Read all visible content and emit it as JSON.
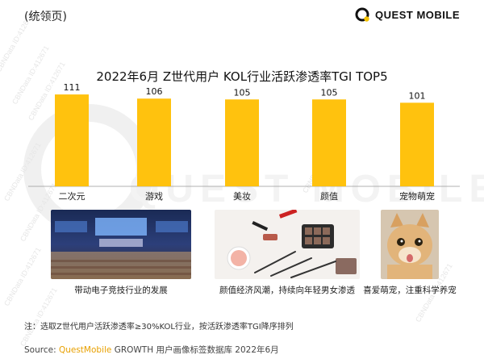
{
  "header": {
    "label": "(统领页)"
  },
  "logo": {
    "name": "QUEST MOBILE",
    "icon": "q-logo-icon",
    "accent": "#F5C200"
  },
  "chart_data": {
    "type": "bar",
    "title": "2022年6月 Z世代用户 KOL行业活跃渗透率TGI TOP5",
    "categories": [
      "二次元",
      "游戏",
      "美妆",
      "颜值",
      "宠物萌宠"
    ],
    "values": [
      111,
      106,
      105,
      105,
      101
    ],
    "ylim": [
      0,
      115
    ],
    "bar_color": "#FFC20E",
    "grid": false,
    "legend": "none"
  },
  "photos": [
    {
      "caption": "带动电子竞技行业的发展",
      "depicts": "esports-arena-image"
    },
    {
      "caption": "颜值经济风潮，持续向年轻男女渗透",
      "depicts": "makeup-products-image"
    },
    {
      "caption": "喜爱萌宠，注重科学养宠",
      "depicts": "cat-image"
    }
  ],
  "note": "注：选取Z世代用户活跃渗透率≥30%KOL行业，按活跃渗透率TGI降序排列",
  "source": {
    "prefix": "Source:",
    "brand": "QuestMobile",
    "rest": "GROWTH 用户画像标签数据库 2022年6月"
  }
}
